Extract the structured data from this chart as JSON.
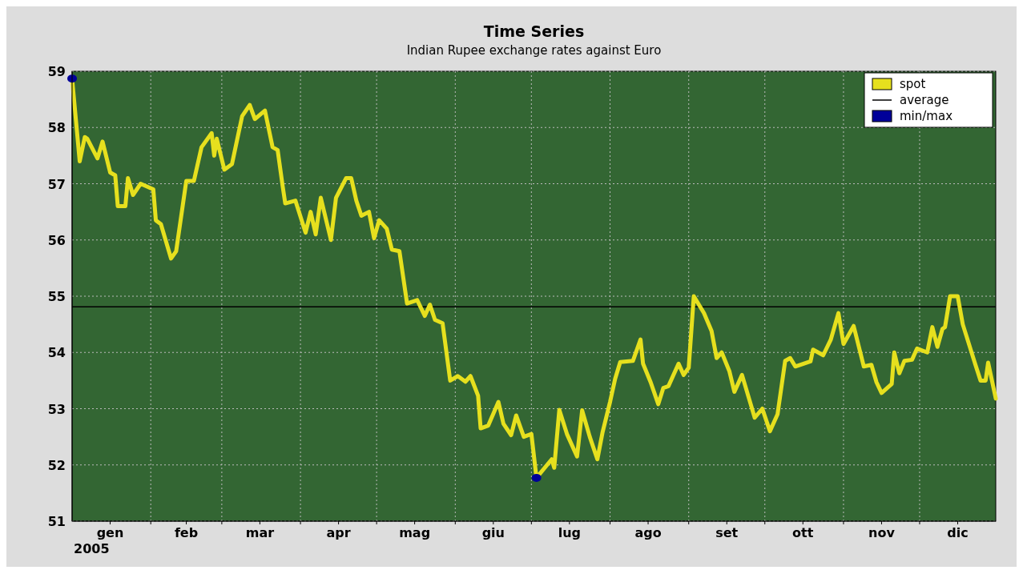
{
  "chart_data": {
    "type": "line",
    "title": "Time Series",
    "subtitle": "Indian Rupee exchange rates  against Euro",
    "xlabel": "2005",
    "xlim": [
      "2005-01-01",
      "2005-12-31"
    ],
    "xticks": [
      {
        "value": "2005-01-16",
        "label": "gen"
      },
      {
        "value": "2005-02-01",
        "label": null
      },
      {
        "value": "2005-02-15",
        "label": "feb"
      },
      {
        "value": "2005-03-01",
        "label": null
      },
      {
        "value": "2005-03-16",
        "label": "mar"
      },
      {
        "value": "2005-04-01",
        "label": null
      },
      {
        "value": "2005-04-16",
        "label": "apr"
      },
      {
        "value": "2005-05-01",
        "label": null
      },
      {
        "value": "2005-05-16",
        "label": "mag"
      },
      {
        "value": "2005-06-01",
        "label": null
      },
      {
        "value": "2005-06-16",
        "label": "giu"
      },
      {
        "value": "2005-07-01",
        "label": null
      },
      {
        "value": "2005-07-16",
        "label": "lug"
      },
      {
        "value": "2005-08-01",
        "label": null
      },
      {
        "value": "2005-08-16",
        "label": "ago"
      },
      {
        "value": "2005-09-01",
        "label": null
      },
      {
        "value": "2005-09-16",
        "label": "set"
      },
      {
        "value": "2005-10-01",
        "label": null
      },
      {
        "value": "2005-10-16",
        "label": "ott"
      },
      {
        "value": "2005-11-01",
        "label": null
      },
      {
        "value": "2005-11-16",
        "label": "nov"
      },
      {
        "value": "2005-12-01",
        "label": null
      },
      {
        "value": "2005-12-16",
        "label": "dic"
      }
    ],
    "ylim": [
      51,
      59
    ],
    "yticks": [
      51,
      52,
      53,
      54,
      55,
      56,
      57,
      58,
      59
    ],
    "grid": true,
    "legend": "top right",
    "ref_lines": [
      {
        "axis": "y",
        "value": 54.81,
        "label": "average",
        "color": "#000000"
      }
    ],
    "series": [
      {
        "name": "spot",
        "color": "#e6e01e",
        "x": [
          "2005-01-01",
          "2005-01-04",
          "2005-01-06",
          "2005-01-07",
          "2005-01-11",
          "2005-01-13",
          "2005-01-16",
          "2005-01-18",
          "2005-01-19",
          "2005-01-22",
          "2005-01-23",
          "2005-01-25",
          "2005-01-28",
          "2005-02-02",
          "2005-02-03",
          "2005-02-05",
          "2005-02-09",
          "2005-02-11",
          "2005-02-15",
          "2005-02-18",
          "2005-02-21",
          "2005-02-25",
          "2005-02-26",
          "2005-02-27",
          "2005-03-02",
          "2005-03-05",
          "2005-03-09",
          "2005-03-12",
          "2005-03-14",
          "2005-03-18",
          "2005-03-21",
          "2005-03-23",
          "2005-03-25",
          "2005-03-26",
          "2005-03-30",
          "2005-04-03",
          "2005-04-05",
          "2005-04-07",
          "2005-04-09",
          "2005-04-13",
          "2005-04-15",
          "2005-04-19",
          "2005-04-21",
          "2005-04-23",
          "2005-04-25",
          "2005-04-28",
          "2005-04-30",
          "2005-05-02",
          "2005-05-05",
          "2005-05-07",
          "2005-05-10",
          "2005-05-13",
          "2005-05-17",
          "2005-05-20",
          "2005-05-22",
          "2005-05-24",
          "2005-05-27",
          "2005-05-30",
          "2005-06-02",
          "2005-06-05",
          "2005-06-07",
          "2005-06-10",
          "2005-06-11",
          "2005-06-14",
          "2005-06-18",
          "2005-06-20",
          "2005-06-23",
          "2005-06-25",
          "2005-06-28",
          "2005-07-01",
          "2005-07-03",
          "2005-07-09",
          "2005-07-10",
          "2005-07-12",
          "2005-07-15",
          "2005-07-19",
          "2005-07-21",
          "2005-07-24",
          "2005-07-27",
          "2005-07-29",
          "2005-08-01",
          "2005-08-03",
          "2005-08-05",
          "2005-08-10",
          "2005-08-13",
          "2005-08-14",
          "2005-08-17",
          "2005-08-20",
          "2005-08-22",
          "2005-08-24",
          "2005-08-28",
          "2005-08-30",
          "2005-09-01",
          "2005-09-03",
          "2005-09-07",
          "2005-09-10",
          "2005-09-12",
          "2005-09-14",
          "2005-09-17",
          "2005-09-19",
          "2005-09-22",
          "2005-09-27",
          "2005-09-30",
          "2005-10-03",
          "2005-10-06",
          "2005-10-09",
          "2005-10-11",
          "2005-10-13",
          "2005-10-19",
          "2005-10-20",
          "2005-10-24",
          "2005-10-27",
          "2005-10-30",
          "2005-11-01",
          "2005-11-05",
          "2005-11-09",
          "2005-11-12",
          "2005-11-14",
          "2005-11-16",
          "2005-11-20",
          "2005-11-21",
          "2005-11-23",
          "2005-11-25",
          "2005-11-28",
          "2005-11-30",
          "2005-12-04",
          "2005-12-06",
          "2005-12-08",
          "2005-12-10",
          "2005-12-11",
          "2005-12-13",
          "2005-12-16",
          "2005-12-18",
          "2005-12-23",
          "2005-12-25",
          "2005-12-27",
          "2005-12-28",
          "2005-12-31"
        ],
        "values": [
          58.87,
          57.4,
          57.83,
          57.8,
          57.45,
          57.75,
          57.2,
          57.15,
          56.6,
          56.6,
          57.1,
          56.8,
          57.0,
          56.9,
          56.35,
          56.28,
          55.67,
          55.8,
          57.05,
          57.05,
          57.65,
          57.9,
          57.5,
          57.8,
          57.25,
          57.35,
          58.2,
          58.4,
          58.15,
          58.3,
          57.65,
          57.6,
          56.95,
          56.65,
          56.7,
          56.13,
          56.5,
          56.1,
          56.75,
          56.0,
          56.75,
          57.1,
          57.1,
          56.7,
          56.43,
          56.5,
          56.03,
          56.35,
          56.2,
          55.83,
          55.8,
          54.87,
          54.93,
          54.65,
          54.85,
          54.58,
          54.52,
          53.5,
          53.58,
          53.48,
          53.58,
          53.23,
          52.65,
          52.7,
          53.12,
          52.73,
          52.53,
          52.88,
          52.5,
          52.55,
          51.77,
          52.1,
          51.95,
          52.98,
          52.55,
          52.15,
          52.97,
          52.5,
          52.1,
          52.57,
          53.12,
          53.53,
          53.83,
          53.85,
          54.23,
          53.8,
          53.47,
          53.08,
          53.37,
          53.4,
          53.8,
          53.6,
          53.73,
          55.0,
          54.7,
          54.38,
          53.9,
          54.0,
          53.67,
          53.3,
          53.6,
          52.84,
          53.0,
          52.6,
          52.9,
          53.85,
          53.9,
          53.75,
          53.84,
          54.05,
          53.95,
          54.23,
          54.7,
          54.15,
          54.47,
          53.75,
          53.78,
          53.47,
          53.28,
          53.44,
          54.0,
          53.63,
          53.85,
          53.87,
          54.07,
          54.0,
          54.45,
          54.1,
          54.42,
          54.45,
          55.0,
          55.0,
          54.5,
          53.78,
          53.5,
          53.5,
          53.82,
          53.18
        ]
      },
      {
        "name": "min/max",
        "type": "scatter",
        "marker": "circle",
        "color": "#000099",
        "x": [
          "2005-01-01",
          "2005-07-03"
        ],
        "values": [
          58.87,
          51.77
        ]
      }
    ]
  }
}
